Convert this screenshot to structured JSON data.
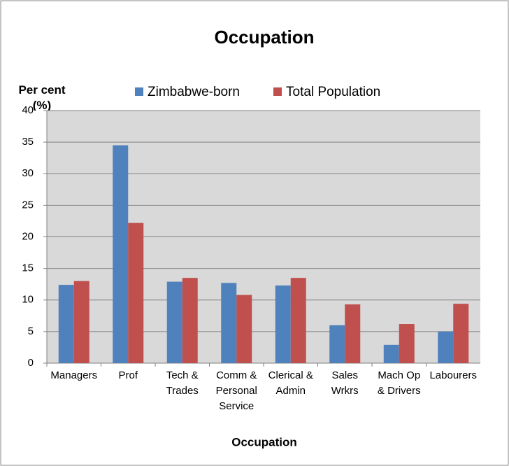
{
  "chart_data": {
    "type": "bar",
    "title": "Occupation",
    "y_label": "Per cent (%)",
    "x_label": "Occupation",
    "categories": [
      "Managers",
      "Prof",
      "Tech & Trades",
      "Comm & Personal Service",
      "Clerical & Admin",
      "Sales Wrkrs",
      "Mach Op & Drivers",
      "Labourers"
    ],
    "series": [
      {
        "name": "Zimbabwe-born",
        "color": "#4f81bd",
        "values": [
          12.4,
          34.5,
          12.9,
          12.7,
          12.3,
          6.0,
          2.9,
          5.0
        ]
      },
      {
        "name": "Total Population",
        "color": "#c0504d",
        "values": [
          13.0,
          22.2,
          13.5,
          10.8,
          13.5,
          9.3,
          6.2,
          9.4
        ]
      }
    ],
    "ylim": [
      0,
      40
    ],
    "yticks": [
      0,
      5,
      10,
      15,
      20,
      25,
      30,
      35,
      40
    ],
    "grid": true,
    "legend": "top"
  }
}
